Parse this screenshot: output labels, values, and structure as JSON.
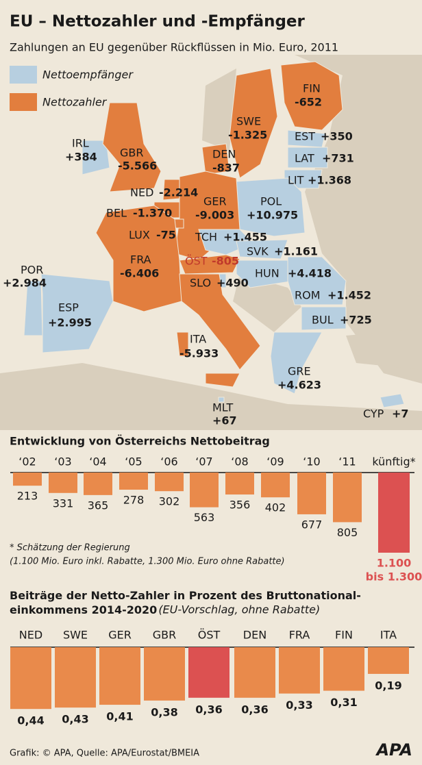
{
  "header": {
    "title": "EU – Nettozahler und -Empfänger",
    "subtitle": "Zahlungen an EU gegenüber Rückflüssen in Mio. Euro, 2011"
  },
  "map": {
    "legend": [
      {
        "name": "Nettoempfänger",
        "color": "#b7cfe0"
      },
      {
        "name": "Nettozahler",
        "color": "#e27e3e"
      }
    ],
    "countries": [
      {
        "name": "FIN",
        "value": -652,
        "value_label": "-652"
      },
      {
        "name": "SWE",
        "value": -1325,
        "value_label": "-1.325"
      },
      {
        "name": "EST",
        "value": 350,
        "value_label": "+350"
      },
      {
        "name": "IRL",
        "value": 384,
        "value_label": "+384"
      },
      {
        "name": "GBR",
        "value": -5566,
        "value_label": "-5.566"
      },
      {
        "name": "DEN",
        "value": -837,
        "value_label": "-837"
      },
      {
        "name": "LAT",
        "value": 731,
        "value_label": "+731"
      },
      {
        "name": "LIT",
        "value": 1368,
        "value_label": "+1.368"
      },
      {
        "name": "NED",
        "value": -2214,
        "value_label": "-2.214"
      },
      {
        "name": "BEL",
        "value": -1370,
        "value_label": "-1.370"
      },
      {
        "name": "POL",
        "value": 10975,
        "value_label": "+10.975"
      },
      {
        "name": "GER",
        "value": -9003,
        "value_label": "-9.003"
      },
      {
        "name": "LUX",
        "value": -75,
        "value_label": "-75"
      },
      {
        "name": "TCH",
        "value": 1455,
        "value_label": "+1.455"
      },
      {
        "name": "SVK",
        "value": 1161,
        "value_label": "+1.161"
      },
      {
        "name": "FRA",
        "value": -6406,
        "value_label": "-6.406"
      },
      {
        "name": "ÖST",
        "value": -805,
        "value_label": "-805"
      },
      {
        "name": "POR",
        "value": 2984,
        "value_label": "+2.984"
      },
      {
        "name": "HUN",
        "value": 4418,
        "value_label": "+4.418"
      },
      {
        "name": "ROM",
        "value": 1452,
        "value_label": "+1.452"
      },
      {
        "name": "SLO",
        "value": 490,
        "value_label": "+490"
      },
      {
        "name": "ESP",
        "value": 2995,
        "value_label": "+2.995"
      },
      {
        "name": "BUL",
        "value": 725,
        "value_label": "+725"
      },
      {
        "name": "ITA",
        "value": -5933,
        "value_label": "-5.933"
      },
      {
        "name": "GRE",
        "value": 4623,
        "value_label": "+4.623"
      },
      {
        "name": "MLT",
        "value": 67,
        "value_label": "+67"
      },
      {
        "name": "CYP",
        "value": 7,
        "value_label": "+7"
      }
    ]
  },
  "chart_data": [
    {
      "type": "bar",
      "title": "Entwicklung von Österreichs Nettobeitrag",
      "categories": [
        "‘02",
        "‘03",
        "‘04",
        "‘05",
        "‘06",
        "‘07",
        "‘08",
        "‘09",
        "‘10",
        "‘11"
      ],
      "values": [
        213,
        331,
        365,
        278,
        302,
        563,
        356,
        402,
        677,
        805
      ],
      "color": "#e98a4b",
      "forecast": {
        "category": "künftig*",
        "low": 1100,
        "high": 1300,
        "low_label": "1.100",
        "high_label": "bis 1.300",
        "color": "#dc5151"
      },
      "notes": [
        "* Schätzung der Regierung",
        "(1.100 Mio. Euro inkl. Rabatte, 1.300 Mio. Euro ohne Rabatte)"
      ]
    },
    {
      "type": "bar",
      "title": "Beiträge der Netto-Zahler in Prozent des Bruttonational-einkommens 2014-2020",
      "subtitle": "(EU-Vorschlag, ohne Rabatte)",
      "categories": [
        "NED",
        "SWE",
        "GER",
        "GBR",
        "ÖST",
        "DEN",
        "FRA",
        "FIN",
        "ITA"
      ],
      "values": [
        0.44,
        0.43,
        0.41,
        0.38,
        0.36,
        0.36,
        0.33,
        0.31,
        0.19
      ],
      "value_labels": [
        "0,44",
        "0,43",
        "0,41",
        "0,38",
        "0,36",
        "0,36",
        "0,33",
        "0,31",
        "0,19"
      ],
      "colors": [
        "#e98a4b",
        "#e98a4b",
        "#e98a4b",
        "#e98a4b",
        "#dc5151",
        "#e98a4b",
        "#e98a4b",
        "#e98a4b",
        "#e98a4b"
      ]
    }
  ],
  "footer": {
    "source": "Grafik: © APA, Quelle: APA/Eurostat/BMEIA",
    "logo": "APA"
  }
}
